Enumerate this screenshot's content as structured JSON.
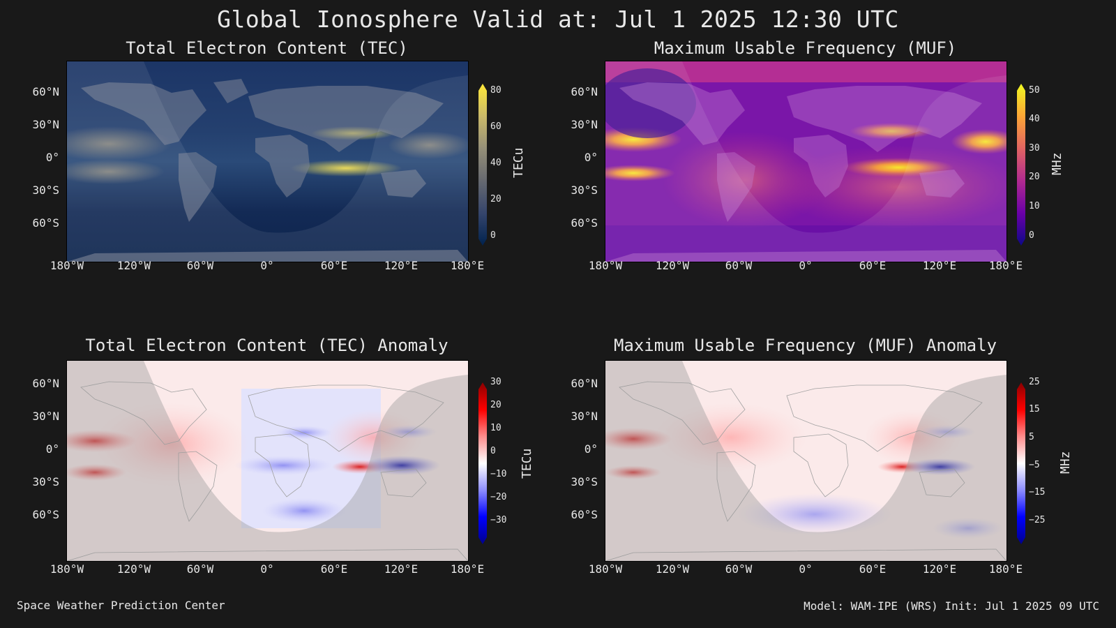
{
  "title": "Global Ionosphere Valid at: Jul 1 2025 12:30 UTC",
  "footer": {
    "left": "Space Weather Prediction Center",
    "right": "Model: WAM-IPE (WRS) Init: Jul 1 2025 09 UTC"
  },
  "axes": {
    "lat_labels": [
      "60°N",
      "30°N",
      "0°",
      "30°S",
      "60°S"
    ],
    "lon_labels": [
      "180°W",
      "120°W",
      "60°W",
      "0°",
      "60°E",
      "120°E",
      "180°E"
    ]
  },
  "panels": [
    {
      "title": "Total Electron Content (TEC)",
      "colorbar": {
        "label": "TECu",
        "ticks": [
          "80",
          "60",
          "40",
          "20",
          "0"
        ],
        "range": [
          0,
          85
        ],
        "colors": [
          "#00224e",
          "#35456c",
          "#666970",
          "#958f78",
          "#cbba69",
          "#fee838"
        ]
      }
    },
    {
      "title": "Maximum Usable Frequency (MUF)",
      "colorbar": {
        "label": "MHz",
        "ticks": [
          "50",
          "40",
          "30",
          "20",
          "10",
          "0"
        ],
        "range": [
          0,
          52
        ],
        "colors": [
          "#0d0887",
          "#6a00a8",
          "#b12a90",
          "#e16462",
          "#fca636",
          "#f0f921"
        ]
      }
    },
    {
      "title": "Total Electron Content (TEC) Anomaly",
      "colorbar": {
        "label": "TECu",
        "ticks": [
          "30",
          "20",
          "10",
          "0",
          "−10",
          "−20",
          "−30"
        ],
        "range": [
          -33,
          33
        ],
        "colors": [
          "#00008b",
          "#0000ff",
          "#8a8aff",
          "#ffffff",
          "#ff8a8a",
          "#ff0000",
          "#8b0000"
        ]
      }
    },
    {
      "title": "Maximum Usable Frequency (MUF) Anomaly",
      "colorbar": {
        "label": "MHz",
        "ticks": [
          "25",
          "15",
          "5",
          "−5",
          "−15",
          "−25"
        ],
        "range": [
          -28,
          28
        ],
        "colors": [
          "#00008b",
          "#0000ff",
          "#8a8aff",
          "#ffffff",
          "#ff8a8a",
          "#ff0000",
          "#8b0000"
        ]
      }
    }
  ]
}
